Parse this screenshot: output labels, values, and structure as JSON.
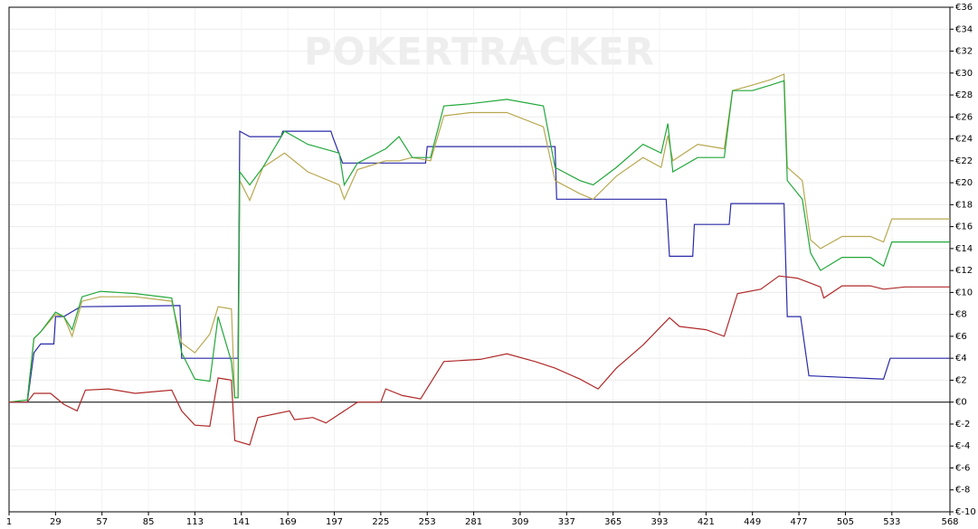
{
  "chart_data": {
    "type": "line",
    "watermark": "POKERTRACKER",
    "xlim": [
      1,
      568
    ],
    "xticks": [
      1,
      29,
      57,
      85,
      113,
      141,
      169,
      197,
      225,
      253,
      281,
      309,
      337,
      365,
      393,
      421,
      449,
      477,
      505,
      533,
      568
    ],
    "ylim": [
      -10,
      36
    ],
    "yticks": [
      {
        "value": -10,
        "label": "€-10"
      },
      {
        "value": -8,
        "label": "€-8"
      },
      {
        "value": -6,
        "label": "€-6"
      },
      {
        "value": -4,
        "label": "€-4"
      },
      {
        "value": -2,
        "label": "€-2"
      },
      {
        "value": 0,
        "label": "€0"
      },
      {
        "value": 2,
        "label": "€2"
      },
      {
        "value": 4,
        "label": "€4"
      },
      {
        "value": 6,
        "label": "€6"
      },
      {
        "value": 8,
        "label": "€8"
      },
      {
        "value": 10,
        "label": "€10"
      },
      {
        "value": 12,
        "label": "€12"
      },
      {
        "value": 14,
        "label": "€14"
      },
      {
        "value": 16,
        "label": "€16"
      },
      {
        "value": 18,
        "label": "€18"
      },
      {
        "value": 20,
        "label": "€20"
      },
      {
        "value": 22,
        "label": "€22"
      },
      {
        "value": 24,
        "label": "€24"
      },
      {
        "value": 26,
        "label": "€26"
      },
      {
        "value": 28,
        "label": "€28"
      },
      {
        "value": 30,
        "label": "€30"
      },
      {
        "value": 32,
        "label": "€32"
      },
      {
        "value": 34,
        "label": "€34"
      },
      {
        "value": 36,
        "label": "€36"
      }
    ],
    "grid": true,
    "zero_line": true,
    "zero_line_color": "#000000",
    "series": [
      {
        "color": "#2a2aa8",
        "x": [
          1,
          12,
          16,
          20,
          28,
          29,
          34,
          44,
          104,
          105,
          139,
          140,
          146,
          165,
          166,
          195,
          196,
          202,
          252,
          253,
          330,
          331,
          397,
          399,
          413,
          414,
          435,
          436,
          468,
          470,
          478,
          483,
          528,
          532,
          568
        ],
        "values": [
          0,
          0,
          4.5,
          5.3,
          5.3,
          7.8,
          7.8,
          8.7,
          8.8,
          4.0,
          4.0,
          24.7,
          24.2,
          24.2,
          24.7,
          24.7,
          24.2,
          21.8,
          21.8,
          23.3,
          23.3,
          18.5,
          18.5,
          13.3,
          13.3,
          16.2,
          16.2,
          18.1,
          18.1,
          7.8,
          7.8,
          2.4,
          2.1,
          4.0,
          4.0
        ]
      },
      {
        "color": "#b8a850",
        "x": [
          1,
          12,
          16,
          20,
          29,
          34,
          39,
          45,
          56,
          77,
          99,
          105,
          113,
          122,
          127,
          135,
          137,
          139,
          140,
          146,
          154,
          167,
          181,
          200,
          203,
          211,
          228,
          236,
          244,
          255,
          263,
          279,
          301,
          323,
          330,
          345,
          353,
          367,
          383,
          394,
          398,
          401,
          416,
          432,
          437,
          449,
          460,
          468,
          470,
          479,
          484,
          490,
          503,
          520,
          528,
          533,
          568
        ],
        "values": [
          0,
          0.2,
          5.8,
          6.4,
          8.0,
          7.8,
          6.0,
          9.2,
          9.6,
          9.6,
          9.2,
          5.4,
          4.5,
          6.2,
          8.7,
          8.5,
          0.4,
          0.4,
          20.2,
          18.4,
          21.4,
          22.7,
          21.0,
          19.8,
          18.5,
          21.2,
          22.0,
          22.0,
          22.3,
          22.0,
          26.1,
          26.4,
          26.4,
          25.1,
          20.2,
          19.0,
          18.5,
          20.6,
          22.3,
          21.4,
          24.3,
          22.0,
          23.5,
          23.1,
          28.4,
          28.9,
          29.4,
          29.9,
          21.4,
          20.2,
          14.8,
          14.0,
          15.1,
          15.1,
          14.6,
          16.7,
          16.7
        ]
      },
      {
        "color": "#22a83a",
        "x": [
          1,
          12,
          16,
          20,
          29,
          34,
          39,
          45,
          56,
          77,
          99,
          105,
          113,
          122,
          127,
          135,
          137,
          139,
          140,
          146,
          154,
          167,
          181,
          200,
          203,
          211,
          228,
          236,
          244,
          255,
          263,
          279,
          301,
          323,
          330,
          345,
          353,
          367,
          383,
          394,
          398,
          401,
          416,
          432,
          437,
          449,
          460,
          468,
          470,
          479,
          484,
          490,
          503,
          520,
          528,
          533,
          568
        ],
        "values": [
          0,
          0.2,
          5.8,
          6.4,
          8.2,
          7.8,
          6.6,
          9.6,
          10.1,
          9.9,
          9.5,
          4.5,
          2.1,
          1.9,
          7.8,
          3.7,
          0.4,
          0.4,
          21.0,
          19.8,
          21.4,
          24.7,
          23.5,
          22.7,
          19.8,
          21.8,
          23.1,
          24.2,
          22.3,
          22.3,
          27.0,
          27.2,
          27.6,
          27.0,
          21.4,
          20.2,
          19.8,
          21.4,
          23.5,
          22.7,
          25.4,
          21.0,
          22.3,
          22.3,
          28.4,
          28.4,
          28.9,
          29.3,
          20.2,
          18.5,
          13.6,
          12.0,
          13.2,
          13.2,
          12.4,
          14.6,
          14.6
        ]
      },
      {
        "color": "#b02828",
        "x": [
          1,
          12,
          16,
          26,
          34,
          42,
          47,
          61,
          77,
          99,
          105,
          113,
          122,
          127,
          135,
          137,
          146,
          151,
          170,
          173,
          184,
          192,
          211,
          225,
          228,
          238,
          249,
          263,
          285,
          301,
          318,
          330,
          345,
          356,
          367,
          383,
          399,
          405,
          421,
          432,
          440,
          454,
          465,
          476,
          490,
          492,
          503,
          520,
          528,
          541,
          568
        ],
        "values": [
          0,
          0,
          0.8,
          0.8,
          -0.2,
          -0.8,
          1.1,
          1.2,
          0.8,
          1.1,
          -0.8,
          -2.1,
          -2.2,
          2.2,
          2.0,
          -3.5,
          -3.9,
          -1.4,
          -0.8,
          -1.6,
          -1.4,
          -1.9,
          0,
          0,
          1.2,
          0.6,
          0.3,
          3.7,
          3.9,
          4.4,
          3.7,
          3.1,
          2.1,
          1.2,
          3.1,
          5.2,
          7.7,
          6.9,
          6.6,
          6.0,
          9.9,
          10.3,
          11.5,
          11.3,
          10.5,
          9.5,
          10.6,
          10.6,
          10.3,
          10.5,
          10.5
        ]
      }
    ]
  }
}
